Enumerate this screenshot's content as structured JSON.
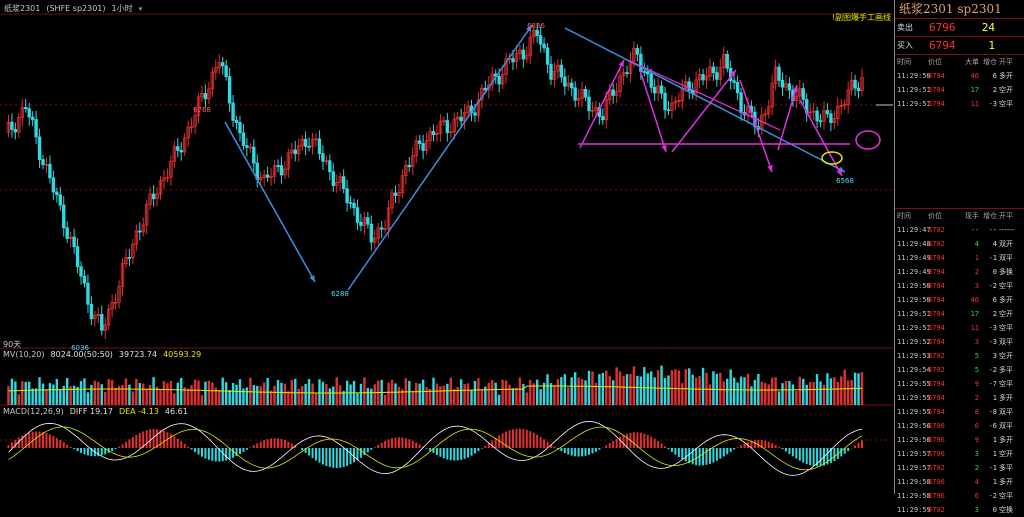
{
  "header": {
    "title": "纸浆2301",
    "contract": "(SHFE sp2301)",
    "period": "1小时",
    "note": "!副图爆手工画线"
  },
  "chart": {
    "marks": {
      "peak_high": "6836",
      "left_high": "6768",
      "mid_low": "6288",
      "left_low": "6036",
      "right_low": "6568"
    },
    "span_label": "90天"
  },
  "mv": {
    "name": "MV(10,20)",
    "v1": "8024.00(50:50)",
    "v2": "39723.74",
    "v3": "40593.29"
  },
  "macd": {
    "name": "MACD(12,26,9)",
    "diff": "DIFF 19.17",
    "dea": "DEA -4.13",
    "macd": "46.61"
  },
  "panel": {
    "title": "纸浆2301  sp2301",
    "ask_label": "卖出",
    "ask_price": "6796",
    "ask_vol": "24",
    "bid_label": "买入",
    "bid_price": "6794",
    "bid_vol": "1",
    "summary_headers": [
      "时间",
      "价位",
      "大单",
      "增仓",
      "开平"
    ],
    "summary_rows": [
      {
        "t": "11:29:50",
        "p": "6794",
        "v": "46",
        "o": "6",
        "k": "多开",
        "vc": "red"
      },
      {
        "t": "11:29:51",
        "p": "6794",
        "v": "17",
        "o": "2",
        "k": "空开",
        "vc": "green"
      },
      {
        "t": "11:29:51",
        "p": "6794",
        "v": "11",
        "o": "-3",
        "k": "空平",
        "vc": "red"
      }
    ],
    "tick_headers": [
      "时间",
      "价位",
      "现手",
      "增仓",
      "开平"
    ],
    "ticks": [
      {
        "t": "11:29:47",
        "p": "6792",
        "v": "--",
        "o": "--",
        "k": "------",
        "vc": "grey"
      },
      {
        "t": "11:29:48",
        "p": "6792",
        "v": "4",
        "o": "4",
        "k": "双开",
        "vc": "green"
      },
      {
        "t": "11:29:49",
        "p": "6794",
        "v": "1",
        "o": "-1",
        "k": "双平",
        "vc": "red"
      },
      {
        "t": "11:29:49",
        "p": "6794",
        "v": "2",
        "o": "0",
        "k": "多换",
        "vc": "red"
      },
      {
        "t": "11:29:50",
        "p": "6794",
        "v": "3",
        "o": "-2",
        "k": "空平",
        "vc": "red"
      },
      {
        "t": "11:29:50",
        "p": "6794",
        "v": "46",
        "o": "6",
        "k": "多开",
        "vc": "red"
      },
      {
        "t": "11:29:51",
        "p": "6794",
        "v": "17",
        "o": "2",
        "k": "空开",
        "vc": "green"
      },
      {
        "t": "11:29:51",
        "p": "6794",
        "v": "11",
        "o": "-3",
        "k": "空平",
        "vc": "red"
      },
      {
        "t": "11:29:52",
        "p": "6794",
        "v": "3",
        "o": "-3",
        "k": "双平",
        "vc": "red"
      },
      {
        "t": "11:29:53",
        "p": "6792",
        "v": "5",
        "o": "3",
        "k": "空开",
        "vc": "green"
      },
      {
        "t": "11:29:54",
        "p": "6792",
        "v": "5",
        "o": "-2",
        "k": "多平",
        "vc": "green"
      },
      {
        "t": "11:29:55",
        "p": "6794",
        "v": "9",
        "o": "-7",
        "k": "空平",
        "vc": "red"
      },
      {
        "t": "11:29:55",
        "p": "6794",
        "v": "2",
        "o": "1",
        "k": "多开",
        "vc": "red"
      },
      {
        "t": "11:29:55",
        "p": "6794",
        "v": "8",
        "o": "-8",
        "k": "双平",
        "vc": "red"
      },
      {
        "t": "11:29:56",
        "p": "6796",
        "v": "6",
        "o": "-6",
        "k": "双平",
        "vc": "red"
      },
      {
        "t": "11:29:56",
        "p": "6796",
        "v": "9",
        "o": "1",
        "k": "多开",
        "vc": "red"
      },
      {
        "t": "11:29:57",
        "p": "6796",
        "v": "3",
        "o": "1",
        "k": "空开",
        "vc": "green"
      },
      {
        "t": "11:29:57",
        "p": "6792",
        "v": "2",
        "o": "-1",
        "k": "多平",
        "vc": "green"
      },
      {
        "t": "11:29:58",
        "p": "6796",
        "v": "4",
        "o": "1",
        "k": "多开",
        "vc": "red"
      },
      {
        "t": "11:29:58",
        "p": "6796",
        "v": "6",
        "o": "-2",
        "k": "空平",
        "vc": "red"
      },
      {
        "t": "11:29:59",
        "p": "6792",
        "v": "3",
        "o": "0",
        "k": "空换",
        "vc": "green"
      }
    ]
  },
  "colors": {
    "up": "#e03030",
    "down": "#30d8e0",
    "red_text": "#ff3030",
    "green_text": "#30e030",
    "arrow_blue": "#3c8fe0",
    "arrow_pink": "#e030e0"
  }
}
